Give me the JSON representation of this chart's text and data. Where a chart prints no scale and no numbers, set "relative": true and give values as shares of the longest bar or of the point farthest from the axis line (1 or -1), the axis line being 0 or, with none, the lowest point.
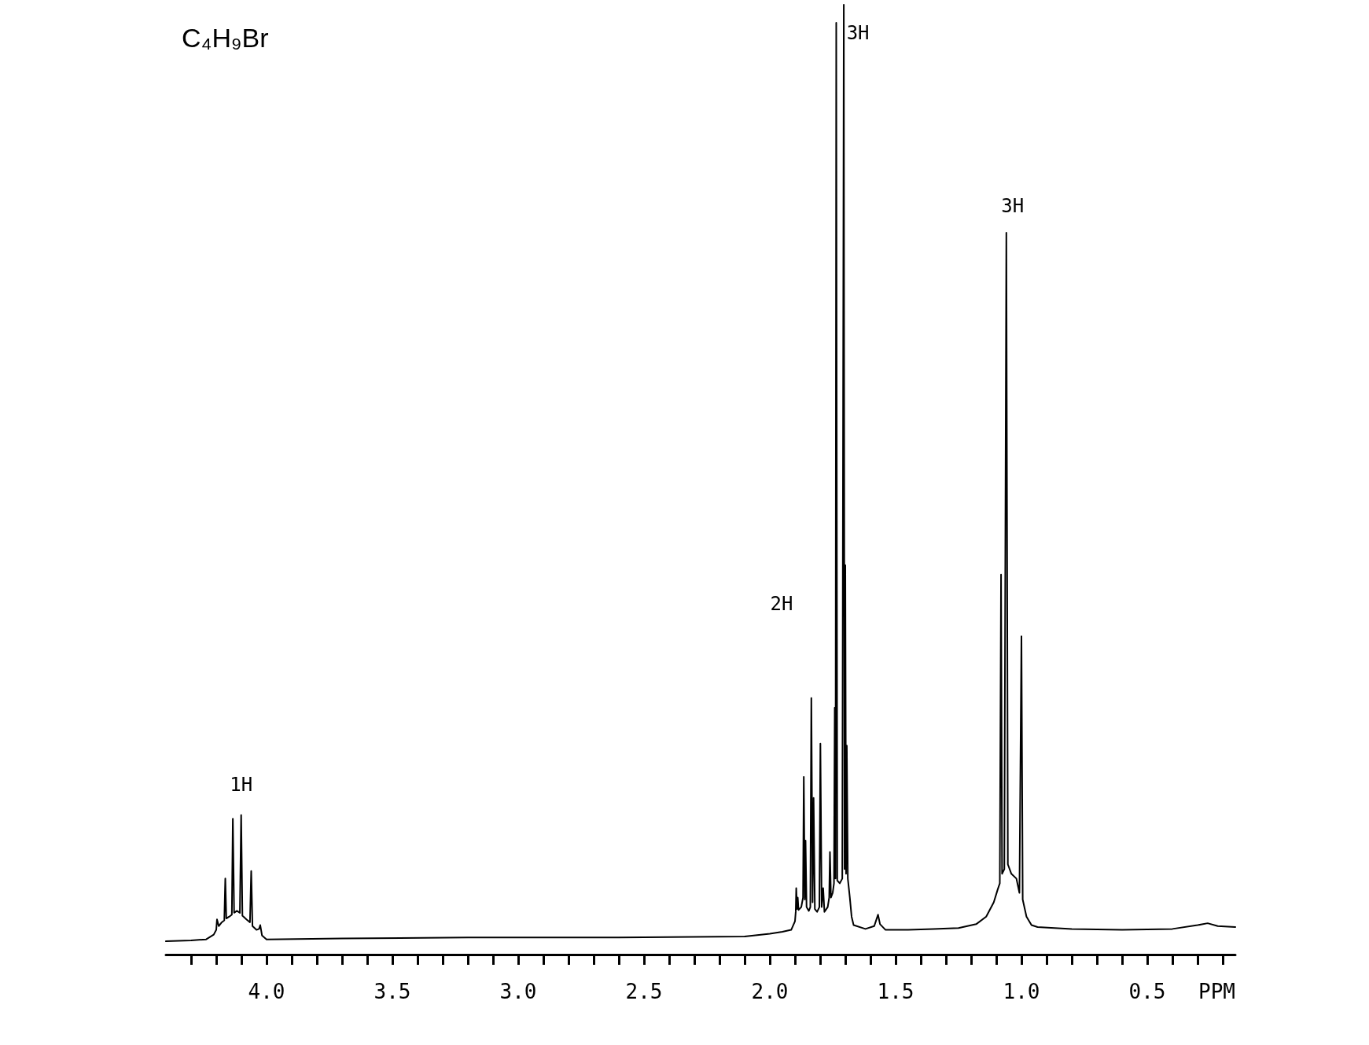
{
  "chart_data": {
    "type": "line",
    "title": "C₄H₉Br",
    "xlabel": "PPM",
    "relative": true,
    "color": "#000000",
    "xlim": [
      4.4,
      0.15
    ],
    "xticks": [
      {
        "value": 4.3,
        "label": null
      },
      {
        "value": 4.2,
        "label": null
      },
      {
        "value": 4.1,
        "label": null
      },
      {
        "value": 4,
        "label": "4.0"
      },
      {
        "value": 3.9,
        "label": null
      },
      {
        "value": 3.8,
        "label": null
      },
      {
        "value": 3.7,
        "label": null
      },
      {
        "value": 3.6,
        "label": null
      },
      3.5,
      {
        "value": 3.4,
        "label": null
      },
      {
        "value": 3.3,
        "label": null
      },
      {
        "value": 3.2,
        "label": null
      },
      {
        "value": 3.1,
        "label": null
      },
      {
        "value": 3,
        "label": "3.0"
      },
      {
        "value": 2.9,
        "label": null
      },
      {
        "value": 2.8,
        "label": null
      },
      {
        "value": 2.7,
        "label": null
      },
      {
        "value": 2.6,
        "label": null
      },
      2.5,
      {
        "value": 2.4,
        "label": null
      },
      {
        "value": 2.3,
        "label": null
      },
      {
        "value": 2.2,
        "label": null
      },
      {
        "value": 2.1,
        "label": null
      },
      {
        "value": 2,
        "label": "2.0"
      },
      {
        "value": 1.9,
        "label": null
      },
      {
        "value": 1.8,
        "label": null
      },
      {
        "value": 1.7,
        "label": null
      },
      {
        "value": 1.6,
        "label": null
      },
      1.5,
      {
        "value": 1.4,
        "label": null
      },
      {
        "value": 1.3,
        "label": null
      },
      {
        "value": 1.2,
        "label": null
      },
      {
        "value": 1.1,
        "label": null
      },
      {
        "value": 1,
        "label": "1.0"
      },
      {
        "value": 0.9,
        "label": null
      },
      {
        "value": 0.8,
        "label": null
      },
      {
        "value": 0.7,
        "label": null
      },
      {
        "value": 0.6,
        "label": null
      },
      0.5,
      {
        "value": 0.4,
        "label": null
      },
      {
        "value": 0.3,
        "label": null
      },
      {
        "value": 0.2,
        "label": null
      }
    ],
    "x": [
      4.4,
      4.3,
      4.24,
      4.21,
      4.2,
      4.197,
      4.19,
      4.178,
      4.168,
      4.164,
      4.16,
      4.148,
      4.138,
      4.134,
      4.129,
      4.118,
      4.106,
      4.101,
      4.096,
      4.08,
      4.066,
      4.061,
      4.056,
      4.04,
      4.03,
      4.025,
      4.018,
      4.0,
      3.7,
      3.2,
      2.6,
      2.1,
      2.0,
      1.95,
      1.915,
      1.9,
      1.897,
      1.895,
      1.892,
      1.889,
      1.886,
      1.875,
      1.868,
      1.865,
      1.861,
      1.858,
      1.854,
      1.845,
      1.839,
      1.835,
      1.83,
      1.826,
      1.821,
      1.812,
      1.803,
      1.799,
      1.794,
      1.788,
      1.783,
      1.77,
      1.764,
      1.761,
      1.757,
      1.75,
      1.745,
      1.742,
      1.739,
      1.736,
      1.732,
      1.722,
      1.712,
      1.706,
      1.703,
      1.7,
      1.697,
      1.694,
      1.69,
      1.682,
      1.675,
      1.667,
      1.62,
      1.585,
      1.575,
      1.57,
      1.562,
      1.54,
      1.45,
      1.35,
      1.25,
      1.18,
      1.14,
      1.11,
      1.095,
      1.086,
      1.081,
      1.077,
      1.068,
      1.06,
      1.054,
      1.04,
      1.02,
      1.008,
      1.0,
      0.995,
      0.98,
      0.96,
      0.936,
      0.8,
      0.6,
      0.4,
      0.3,
      0.26,
      0.22,
      0.15
    ],
    "values": [
      0.014,
      0.015,
      0.016,
      0.021,
      0.026,
      0.037,
      0.03,
      0.034,
      0.036,
      0.08,
      0.038,
      0.04,
      0.042,
      0.143,
      0.044,
      0.046,
      0.044,
      0.147,
      0.041,
      0.037,
      0.034,
      0.088,
      0.03,
      0.026,
      0.027,
      0.031,
      0.02,
      0.016,
      0.017,
      0.018,
      0.018,
      0.019,
      0.022,
      0.024,
      0.026,
      0.035,
      0.045,
      0.07,
      0.048,
      0.06,
      0.047,
      0.05,
      0.06,
      0.187,
      0.058,
      0.12,
      0.05,
      0.046,
      0.05,
      0.27,
      0.055,
      0.165,
      0.048,
      0.045,
      0.05,
      0.222,
      0.05,
      0.07,
      0.045,
      0.05,
      0.06,
      0.108,
      0.06,
      0.065,
      0.075,
      0.26,
      0.08,
      0.981,
      0.078,
      0.075,
      0.08,
      1.0,
      0.09,
      0.41,
      0.085,
      0.22,
      0.08,
      0.06,
      0.04,
      0.031,
      0.027,
      0.03,
      0.038,
      0.042,
      0.032,
      0.026,
      0.026,
      0.027,
      0.028,
      0.032,
      0.04,
      0.055,
      0.068,
      0.075,
      0.4,
      0.085,
      0.09,
      0.76,
      0.095,
      0.085,
      0.08,
      0.065,
      0.335,
      0.058,
      0.04,
      0.031,
      0.029,
      0.027,
      0.026,
      0.027,
      0.031,
      0.033,
      0.03,
      0.029
    ],
    "annotations": [
      {
        "text": "1H",
        "x": 4.101,
        "y": 0.147
      },
      "2H",
      {
        "text": "3H",
        "x": 1.706,
        "y": 1.0
      },
      {
        "text": "3H",
        "x": 1.06,
        "y": 0.76
      }
    ]
  }
}
